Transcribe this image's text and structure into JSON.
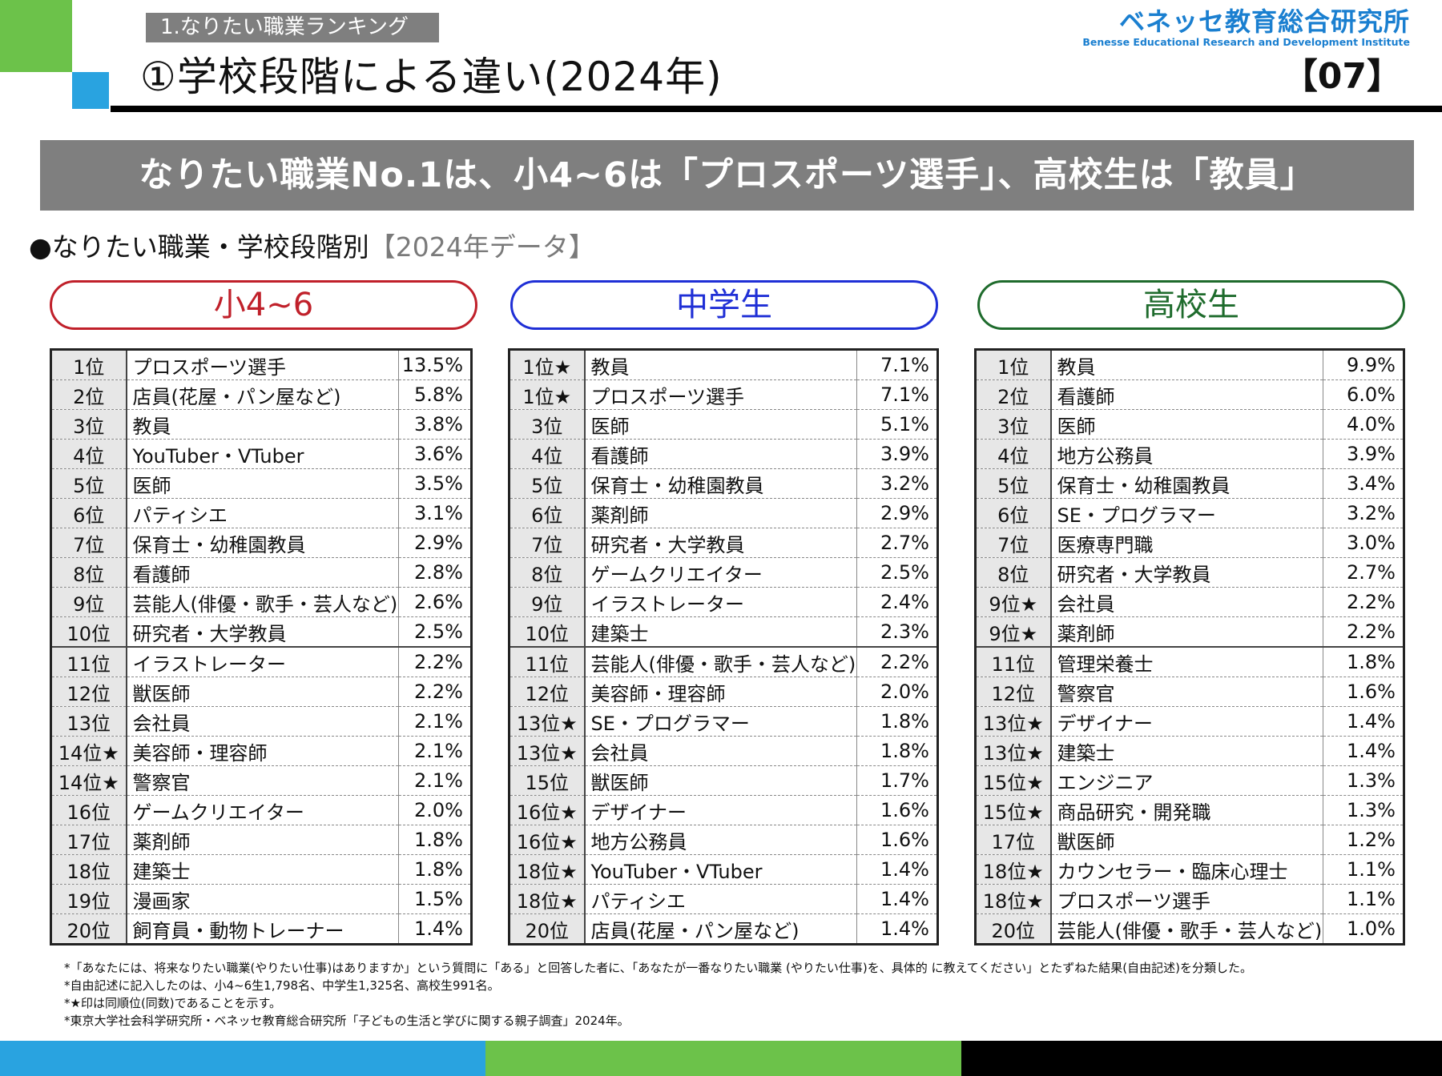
{
  "header": {
    "section_tag": "1.なりたい職業ランキング",
    "title": "①学校段階による違い(2024年)",
    "page_number": "【07】",
    "logo_jp": "ベネッセ教育総合研究所",
    "logo_en": "Benesse Educational Research and Development Institute"
  },
  "banner": "なりたい職業No.1は、小4~6は「プロスポーツ選手」、高校生は「教員」",
  "subhead": {
    "label": "●なりたい職業・学校段階別",
    "bracket": "【2024年データ】"
  },
  "colors": {
    "elementary": "#c0202a",
    "junior_high": "#1f2fd6",
    "high_school": "#1e6b2c",
    "banner": "#7f7f7f"
  },
  "groups": [
    {
      "label": "小4~6",
      "rows": [
        [
          "1位",
          "プロスポーツ選手",
          "13.5%"
        ],
        [
          "2位",
          "店員(花屋・パン屋など)",
          "5.8%"
        ],
        [
          "3位",
          "教員",
          "3.8%"
        ],
        [
          "4位",
          "YouTuber・VTuber",
          "3.6%"
        ],
        [
          "5位",
          "医師",
          "3.5%"
        ],
        [
          "6位",
          "パティシエ",
          "3.1%"
        ],
        [
          "7位",
          "保育士・幼稚園教員",
          "2.9%"
        ],
        [
          "8位",
          "看護師",
          "2.8%"
        ],
        [
          "9位",
          "芸能人(俳優・歌手・芸人など)",
          "2.6%"
        ],
        [
          "10位",
          "研究者・大学教員",
          "2.5%"
        ],
        [
          "11位",
          "イラストレーター",
          "2.2%"
        ],
        [
          "12位",
          "獣医師",
          "2.2%"
        ],
        [
          "13位",
          "会社員",
          "2.1%"
        ],
        [
          "14位★",
          "美容師・理容師",
          "2.1%"
        ],
        [
          "14位★",
          "警察官",
          "2.1%"
        ],
        [
          "16位",
          "ゲームクリエイター",
          "2.0%"
        ],
        [
          "17位",
          "薬剤師",
          "1.8%"
        ],
        [
          "18位",
          "建築士",
          "1.8%"
        ],
        [
          "19位",
          "漫画家",
          "1.5%"
        ],
        [
          "20位",
          "飼育員・動物トレーナー",
          "1.4%"
        ]
      ]
    },
    {
      "label": "中学生",
      "rows": [
        [
          "1位★",
          "教員",
          "7.1%"
        ],
        [
          "1位★",
          "プロスポーツ選手",
          "7.1%"
        ],
        [
          "3位",
          "医師",
          "5.1%"
        ],
        [
          "4位",
          "看護師",
          "3.9%"
        ],
        [
          "5位",
          "保育士・幼稚園教員",
          "3.2%"
        ],
        [
          "6位",
          "薬剤師",
          "2.9%"
        ],
        [
          "7位",
          "研究者・大学教員",
          "2.7%"
        ],
        [
          "8位",
          "ゲームクリエイター",
          "2.5%"
        ],
        [
          "9位",
          "イラストレーター",
          "2.4%"
        ],
        [
          "10位",
          "建築士",
          "2.3%"
        ],
        [
          "11位",
          "芸能人(俳優・歌手・芸人など)",
          "2.2%"
        ],
        [
          "12位",
          "美容師・理容師",
          "2.0%"
        ],
        [
          "13位★",
          "SE・プログラマー",
          "1.8%"
        ],
        [
          "13位★",
          "会社員",
          "1.8%"
        ],
        [
          "15位",
          "獣医師",
          "1.7%"
        ],
        [
          "16位★",
          "デザイナー",
          "1.6%"
        ],
        [
          "16位★",
          "地方公務員",
          "1.6%"
        ],
        [
          "18位★",
          "YouTuber・VTuber",
          "1.4%"
        ],
        [
          "18位★",
          "パティシエ",
          "1.4%"
        ],
        [
          "20位",
          "店員(花屋・パン屋など)",
          "1.4%"
        ]
      ]
    },
    {
      "label": "高校生",
      "rows": [
        [
          "1位",
          "教員",
          "9.9%"
        ],
        [
          "2位",
          "看護師",
          "6.0%"
        ],
        [
          "3位",
          "医師",
          "4.0%"
        ],
        [
          "4位",
          "地方公務員",
          "3.9%"
        ],
        [
          "5位",
          "保育士・幼稚園教員",
          "3.4%"
        ],
        [
          "6位",
          "SE・プログラマー",
          "3.2%"
        ],
        [
          "7位",
          "医療専門職",
          "3.0%"
        ],
        [
          "8位",
          "研究者・大学教員",
          "2.7%"
        ],
        [
          "9位★",
          "会社員",
          "2.2%"
        ],
        [
          "9位★",
          "薬剤師",
          "2.2%"
        ],
        [
          "11位",
          "管理栄養士",
          "1.8%"
        ],
        [
          "12位",
          "警察官",
          "1.6%"
        ],
        [
          "13位★",
          "デザイナー",
          "1.4%"
        ],
        [
          "13位★",
          "建築士",
          "1.4%"
        ],
        [
          "15位★",
          "エンジニア",
          "1.3%"
        ],
        [
          "15位★",
          "商品研究・開発職",
          "1.3%"
        ],
        [
          "17位",
          "獣医師",
          "1.2%"
        ],
        [
          "18位★",
          "カウンセラー・臨床心理士",
          "1.1%"
        ],
        [
          "18位★",
          "プロスポーツ選手",
          "1.1%"
        ],
        [
          "20位",
          "芸能人(俳優・歌手・芸人など)",
          "1.0%"
        ]
      ]
    }
  ],
  "notes": [
    "*「あなたには、将来なりたい職業(やりたい仕事)はありますか」という質問に「ある」と回答した者に、「あなたが一番なりたい職業 (やりたい仕事)を、具体的 に教えてください」とたずねた結果(自由記述)を分類した。",
    "*自由記述に記入したのは、小4~6生1,798名、中学生1,325名、高校生991名。",
    "*★印は同順位(同数)であることを示す。",
    "*東京大学社会科学研究所・ベネッセ教育総合研究所「子どもの生活と学びに関する親子調査」2024年。"
  ],
  "footer_colors": [
    "#29a3e0",
    "#6cc24a",
    "#000000"
  ]
}
